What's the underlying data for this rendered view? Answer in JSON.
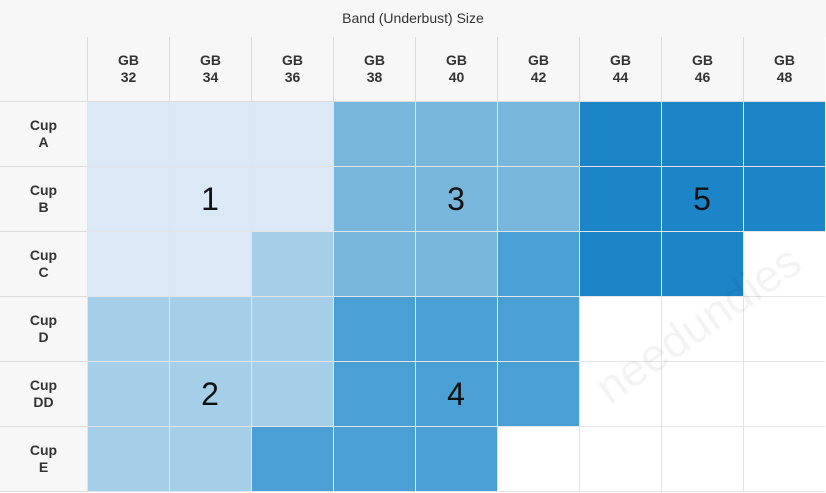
{
  "title": "Band (Underbust) Size",
  "columns": [
    {
      "prefix": "GB",
      "size": "32"
    },
    {
      "prefix": "GB",
      "size": "34"
    },
    {
      "prefix": "GB",
      "size": "36"
    },
    {
      "prefix": "GB",
      "size": "38"
    },
    {
      "prefix": "GB",
      "size": "40"
    },
    {
      "prefix": "GB",
      "size": "42"
    },
    {
      "prefix": "GB",
      "size": "44"
    },
    {
      "prefix": "GB",
      "size": "46"
    },
    {
      "prefix": "GB",
      "size": "48"
    }
  ],
  "rows": [
    {
      "prefix": "Cup",
      "cup": "A"
    },
    {
      "prefix": "Cup",
      "cup": "B"
    },
    {
      "prefix": "Cup",
      "cup": "C"
    },
    {
      "prefix": "Cup",
      "cup": "D"
    },
    {
      "prefix": "Cup",
      "cup": "DD"
    },
    {
      "prefix": "Cup",
      "cup": "E"
    }
  ],
  "grid": [
    [
      1,
      1,
      1,
      3,
      3,
      3,
      5,
      5,
      5
    ],
    [
      1,
      1,
      1,
      3,
      3,
      3,
      5,
      5,
      5
    ],
    [
      1,
      1,
      2,
      3,
      3,
      4,
      5,
      5,
      0
    ],
    [
      2,
      2,
      2,
      4,
      4,
      4,
      0,
      0,
      0
    ],
    [
      2,
      2,
      2,
      4,
      4,
      4,
      0,
      0,
      0
    ],
    [
      2,
      2,
      4,
      4,
      4,
      0,
      0,
      0,
      0
    ]
  ],
  "group_colors": {
    "0": "#ffffff",
    "1": "#dbe9f6",
    "2": "#a5cfe9",
    "3": "#78b6dc",
    "4": "#4a9fd5",
    "5": "#1c85c8"
  },
  "group_labels": [
    {
      "text": "1",
      "row": 1,
      "col": 1
    },
    {
      "text": "2",
      "row": 4,
      "col": 1
    },
    {
      "text": "3",
      "row": 1,
      "col": 4
    },
    {
      "text": "4",
      "row": 4,
      "col": 4
    },
    {
      "text": "5",
      "row": 1,
      "col": 7
    }
  ],
  "watermark": "needundies"
}
